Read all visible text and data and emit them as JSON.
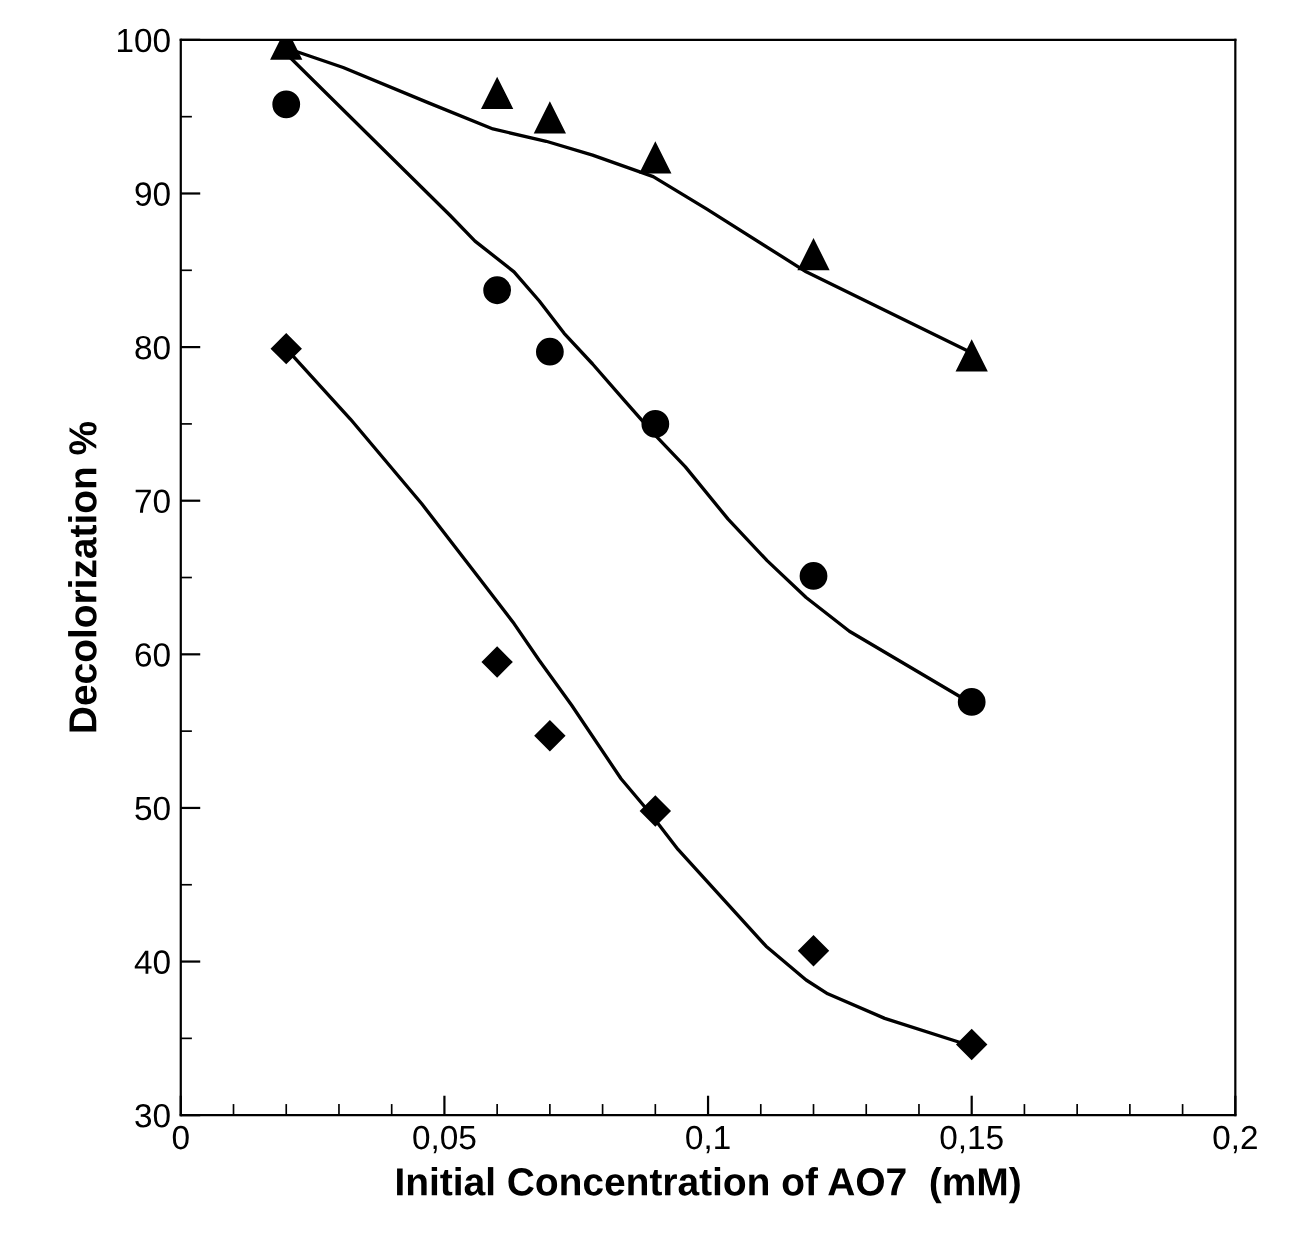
{
  "chart_data": {
    "type": "scatter",
    "xlabel": "Initial Concentration of AO7  (mM)",
    "ylabel": "Decolorization %",
    "xlim": [
      0,
      0.2
    ],
    "ylim": [
      30,
      100
    ],
    "xticks": [
      0,
      {
        "value": 0.05,
        "label": "0,05"
      },
      {
        "value": 0.1,
        "label": "0,1"
      },
      {
        "value": 0.15,
        "label": "0,15"
      },
      {
        "value": 0.2,
        "label": "0,2"
      }
    ],
    "yticks": [
      30,
      40,
      50,
      60,
      70,
      80,
      90,
      100
    ],
    "grid": false,
    "legend": false,
    "series": [
      {
        "marker": "triangle",
        "color": "#000000",
        "x": [
          0.02,
          0.06,
          0.07,
          0.09,
          0.12,
          0.15
        ],
        "values": [
          99.7,
          96.5,
          94.9,
          92.3,
          86.0,
          79.4
        ]
      },
      {
        "marker": "circle",
        "color": "#000000",
        "x": [
          0.02,
          0.06,
          0.07,
          0.09,
          0.12,
          0.15
        ],
        "values": [
          95.8,
          83.7,
          79.7,
          75.0,
          65.1,
          56.9
        ]
      },
      {
        "marker": "diamond",
        "color": "#000000",
        "x": [
          0.02,
          0.06,
          0.07,
          0.09,
          0.12,
          0.15
        ],
        "values": [
          79.9,
          59.5,
          54.7,
          49.8,
          40.7,
          34.6
        ]
      },
      {
        "type": "line",
        "marker": "none",
        "line_style": "solid",
        "color": "#000000",
        "x": [
          0.0197,
          0.0308,
          0.047,
          0.0592,
          0.0693,
          0.0781,
          0.0896,
          0.0997,
          0.1186,
          0.149
        ],
        "values": [
          99.5,
          98.2,
          95.9,
          94.2,
          93.4,
          92.5,
          91.1,
          89.0,
          84.9,
          79.8
        ]
      },
      {
        "type": "line",
        "marker": "none",
        "line_style": "solid",
        "color": "#000000",
        "x": [
          0.02,
          0.051,
          0.0558,
          0.0632,
          0.068,
          0.0727,
          0.0781,
          0.0842,
          0.0896,
          0.0957,
          0.1038,
          0.1112,
          0.1186,
          0.1268,
          0.149
        ],
        "values": [
          99.1,
          88.6,
          86.9,
          84.9,
          83.0,
          80.9,
          78.9,
          76.5,
          74.4,
          72.2,
          68.8,
          66.1,
          63.7,
          61.5,
          57.0
        ]
      },
      {
        "type": "line",
        "marker": "none",
        "line_style": "solid",
        "color": "#000000",
        "x": [
          0.02,
          0.0322,
          0.0457,
          0.0565,
          0.0632,
          0.068,
          0.0741,
          0.0835,
          0.0889,
          0.0943,
          0.111,
          0.1186,
          0.1227,
          0.1335,
          0.149
        ],
        "values": [
          79.9,
          75.3,
          69.8,
          65.0,
          62.0,
          59.6,
          56.7,
          51.9,
          49.7,
          47.3,
          41.0,
          38.8,
          37.9,
          36.3,
          34.6
        ]
      }
    ]
  }
}
